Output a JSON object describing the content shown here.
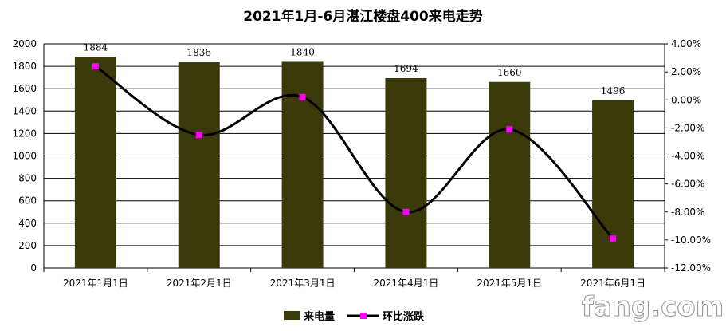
{
  "chart_data": {
    "type": "bar",
    "title": "2021年1月-6月湛江楼盘400来电走势",
    "categories": [
      "2021年1月1日",
      "2021年2月1日",
      "2021年3月1日",
      "2021年4月1日",
      "2021年5月1日",
      "2021年6月1日"
    ],
    "series": [
      {
        "name": "来电量",
        "type": "bar",
        "axis": "left",
        "color": "#3a3a0a",
        "values": [
          1884,
          1836,
          1840,
          1694,
          1660,
          1496
        ]
      },
      {
        "name": "环比涨跌",
        "type": "line",
        "axis": "right",
        "line_color": "#000000",
        "marker_color": "#ff00ff",
        "values": [
          2.4,
          -2.5,
          0.2,
          -8.0,
          -2.1,
          -9.9
        ]
      }
    ],
    "y_left": {
      "ylim": [
        0,
        2000
      ],
      "ticks": [
        "0",
        "200",
        "400",
        "600",
        "800",
        "1000",
        "1200",
        "1400",
        "1600",
        "1800",
        "2000"
      ]
    },
    "y_right": {
      "ylim": [
        -12,
        4
      ],
      "unit": "%",
      "ticks": [
        "-12.00%",
        "-10.00%",
        "-8.00%",
        "-6.00%",
        "-4.00%",
        "-2.00%",
        "0.00%",
        "2.00%",
        "4.00%"
      ]
    },
    "grid": true,
    "legend_position": "bottom"
  },
  "watermark": {
    "text": "fang.com"
  }
}
